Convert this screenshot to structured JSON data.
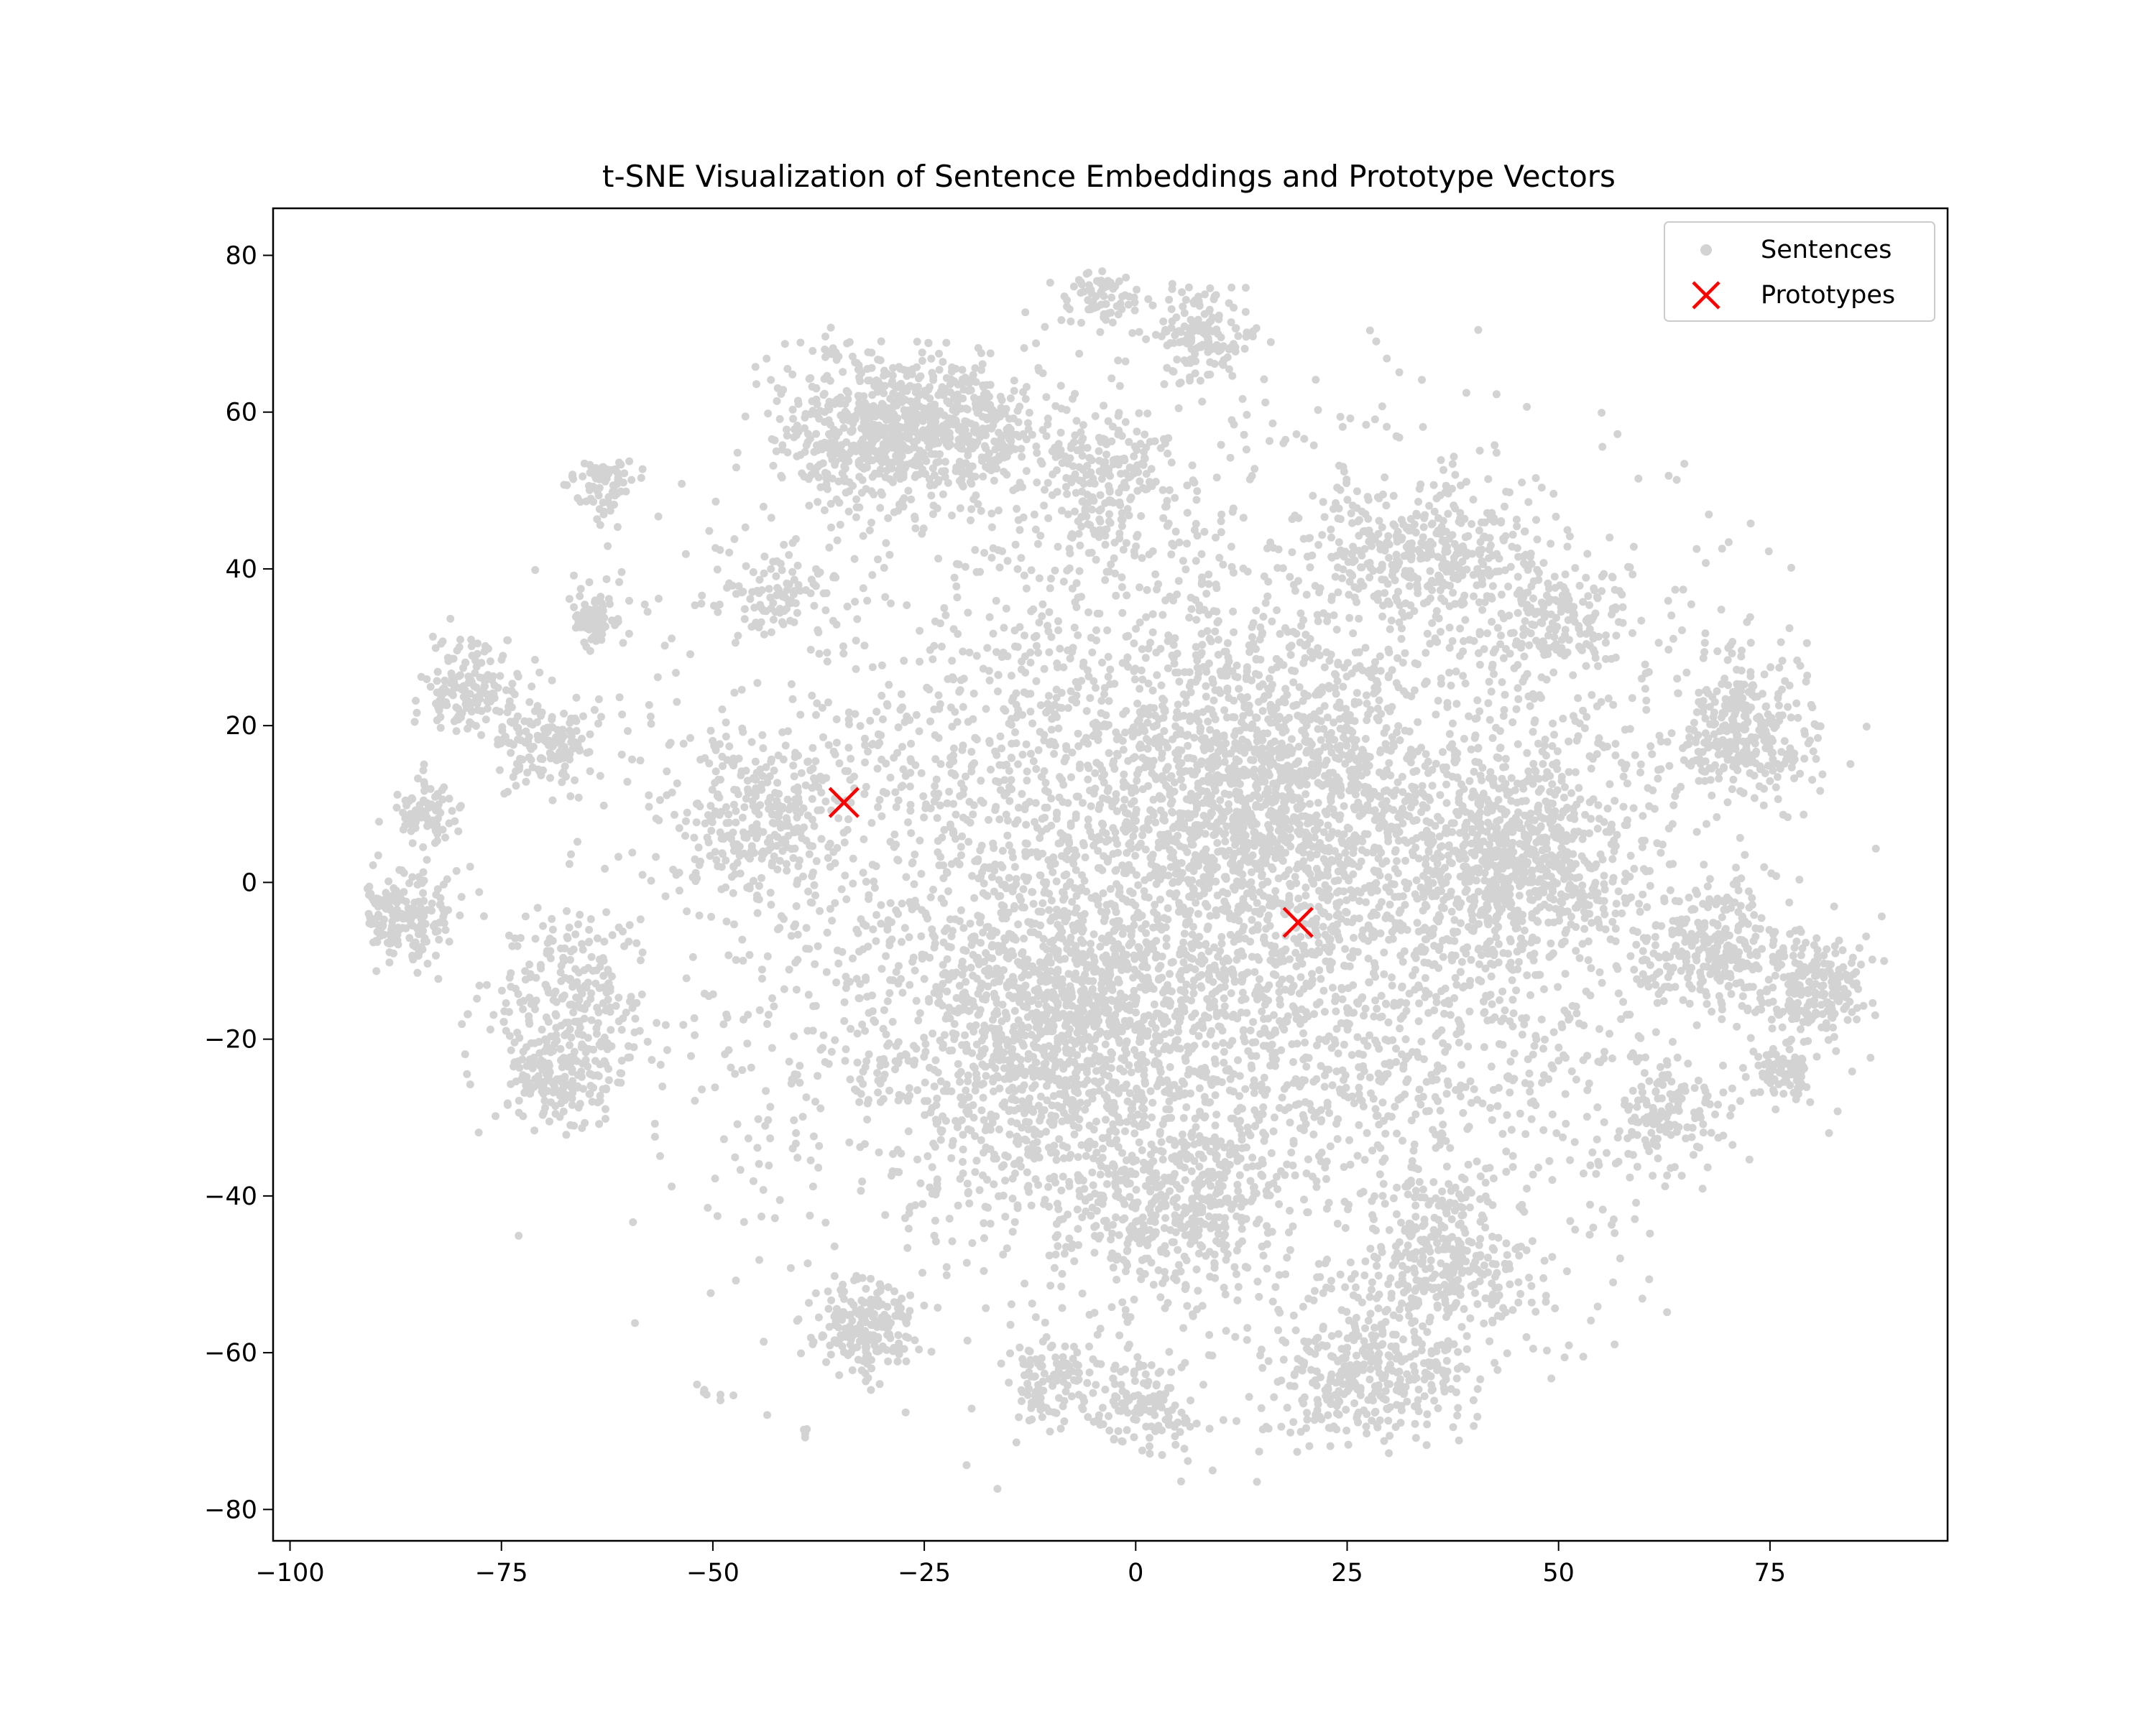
{
  "chart_data": {
    "type": "scatter",
    "title": "t-SNE Visualization of Sentence Embeddings and Prototype Vectors",
    "xlabel": "",
    "ylabel": "",
    "xlim": [
      -102,
      96
    ],
    "ylim": [
      -84,
      86
    ],
    "xticks": [
      -100,
      -75,
      -50,
      -25,
      0,
      25,
      50,
      75
    ],
    "yticks": [
      -80,
      -60,
      -40,
      -20,
      0,
      20,
      40,
      60,
      80
    ],
    "xtick_labels": [
      "−100",
      "−75",
      "−50",
      "−25",
      "0",
      "25",
      "50",
      "75"
    ],
    "ytick_labels": [
      "−80",
      "−60",
      "−40",
      "−20",
      "0",
      "20",
      "40",
      "60",
      "80"
    ],
    "grid": false,
    "legend_position": "top-right",
    "series": [
      {
        "name": "Sentences",
        "marker": "circle",
        "color": "#d3d3d3",
        "clusters": [
          {
            "cx": 10,
            "cy": 0,
            "sx": 30,
            "sy": 28,
            "n": 5200
          },
          {
            "cx": -10,
            "cy": -20,
            "sx": 10,
            "sy": 9,
            "n": 900
          },
          {
            "cx": 15,
            "cy": 10,
            "sx": 9,
            "sy": 9,
            "n": 700
          },
          {
            "cx": -32,
            "cy": 58,
            "sx": 5,
            "sy": 5,
            "n": 500
          },
          {
            "cx": -20,
            "cy": 58,
            "sx": 5,
            "sy": 4,
            "n": 350
          },
          {
            "cx": 45,
            "cy": 3,
            "sx": 6,
            "sy": 6,
            "n": 550
          },
          {
            "cx": 72,
            "cy": 19,
            "sx": 4,
            "sy": 4,
            "n": 300
          },
          {
            "cx": 68,
            "cy": -8,
            "sx": 4,
            "sy": 4,
            "n": 250
          },
          {
            "cx": 80,
            "cy": -13,
            "sx": 3,
            "sy": 3,
            "n": 200
          },
          {
            "cx": 36,
            "cy": -48,
            "sx": 5,
            "sy": 5,
            "n": 300
          },
          {
            "cx": 28,
            "cy": -63,
            "sx": 6,
            "sy": 4,
            "n": 350
          },
          {
            "cx": -32,
            "cy": -57,
            "sx": 3,
            "sy": 3,
            "n": 200
          },
          {
            "cx": -68,
            "cy": -23,
            "sx": 4,
            "sy": 4,
            "n": 250
          },
          {
            "cx": -70,
            "cy": 18,
            "sx": 3,
            "sy": 3,
            "n": 150
          },
          {
            "cx": -79,
            "cy": 25,
            "sx": 3,
            "sy": 3,
            "n": 150
          },
          {
            "cx": -87,
            "cy": -4,
            "sx": 3,
            "sy": 3,
            "n": 170
          },
          {
            "cx": -84,
            "cy": 9,
            "sx": 2,
            "sy": 2,
            "n": 80
          },
          {
            "cx": -63,
            "cy": 51,
            "sx": 2,
            "sy": 2,
            "n": 80
          },
          {
            "cx": -64,
            "cy": 34,
            "sx": 2,
            "sy": 2,
            "n": 80
          },
          {
            "cx": 8,
            "cy": 70,
            "sx": 3,
            "sy": 3,
            "n": 140
          },
          {
            "cx": -4,
            "cy": 75,
            "sx": 2,
            "sy": 2,
            "n": 70
          },
          {
            "cx": -43,
            "cy": -74,
            "sx": 2,
            "sy": 1.5,
            "n": 60
          },
          {
            "cx": 1,
            "cy": -67,
            "sx": 3,
            "sy": 3,
            "n": 120
          },
          {
            "cx": 34,
            "cy": 43,
            "sx": 6,
            "sy": 4,
            "n": 300
          },
          {
            "cx": 50,
            "cy": 34,
            "sx": 4,
            "sy": 4,
            "n": 150
          },
          {
            "cx": -3,
            "cy": 52,
            "sx": 4,
            "sy": 4,
            "n": 180
          },
          {
            "cx": -45,
            "cy": 8,
            "sx": 5,
            "sy": 5,
            "n": 250
          },
          {
            "cx": 63,
            "cy": -29,
            "sx": 3,
            "sy": 3,
            "n": 120
          },
          {
            "cx": -67,
            "cy": -12,
            "sx": 4,
            "sy": 4,
            "n": 150
          },
          {
            "cx": -10,
            "cy": -64,
            "sx": 3,
            "sy": 3,
            "n": 100
          },
          {
            "cx": -52,
            "cy": -67,
            "sx": 1.5,
            "sy": 1,
            "n": 30
          },
          {
            "cx": 77,
            "cy": -24,
            "sx": 2,
            "sy": 2,
            "n": 80
          },
          {
            "cx": -43,
            "cy": 37,
            "sx": 3,
            "sy": 3,
            "n": 80
          },
          {
            "cx": 5,
            "cy": -40,
            "sx": 6,
            "sy": 5,
            "n": 350
          }
        ]
      },
      {
        "name": "Prototypes",
        "marker": "x",
        "color": "#ff0000",
        "points": [
          {
            "x": -34.5,
            "y": 10.2
          },
          {
            "x": 19.2,
            "y": -5.1
          }
        ]
      }
    ]
  }
}
